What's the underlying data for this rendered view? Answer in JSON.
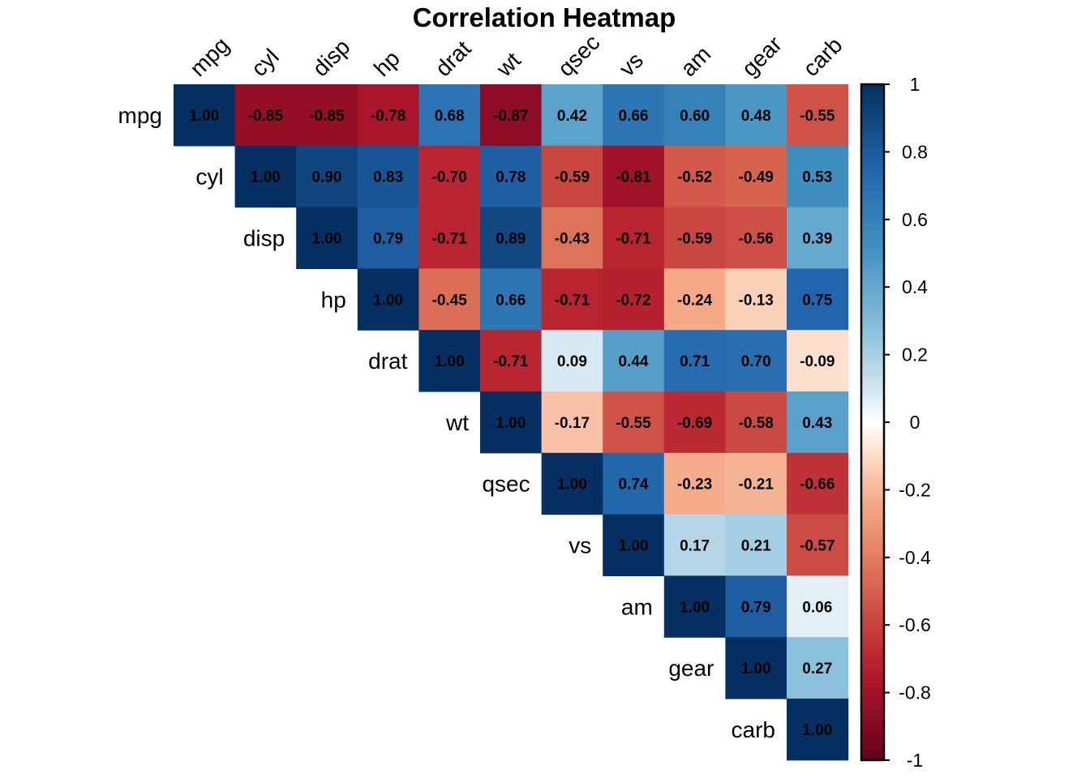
{
  "chart_data": {
    "type": "heatmap",
    "title": "Correlation Heatmap",
    "variables": [
      "mpg",
      "cyl",
      "disp",
      "hp",
      "drat",
      "wt",
      "qsec",
      "vs",
      "am",
      "gear",
      "carb"
    ],
    "triangle": "upper",
    "show_diagonal": true,
    "value_format": "2 decimals",
    "matrix": [
      [
        1.0,
        -0.85,
        -0.85,
        -0.78,
        0.68,
        -0.87,
        0.42,
        0.66,
        0.6,
        0.48,
        -0.55
      ],
      [
        null,
        1.0,
        0.9,
        0.83,
        -0.7,
        0.78,
        -0.59,
        -0.81,
        -0.52,
        -0.49,
        0.53
      ],
      [
        null,
        null,
        1.0,
        0.79,
        -0.71,
        0.89,
        -0.43,
        -0.71,
        -0.59,
        -0.56,
        0.39
      ],
      [
        null,
        null,
        null,
        1.0,
        -0.45,
        0.66,
        -0.71,
        -0.72,
        -0.24,
        -0.13,
        0.75
      ],
      [
        null,
        null,
        null,
        null,
        1.0,
        -0.71,
        0.09,
        0.44,
        0.71,
        0.7,
        -0.09
      ],
      [
        null,
        null,
        null,
        null,
        null,
        1.0,
        -0.17,
        -0.55,
        -0.69,
        -0.58,
        0.43
      ],
      [
        null,
        null,
        null,
        null,
        null,
        null,
        1.0,
        0.74,
        -0.23,
        -0.21,
        -0.66
      ],
      [
        null,
        null,
        null,
        null,
        null,
        null,
        null,
        1.0,
        0.17,
        0.21,
        -0.57
      ],
      [
        null,
        null,
        null,
        null,
        null,
        null,
        null,
        null,
        1.0,
        0.79,
        0.06
      ],
      [
        null,
        null,
        null,
        null,
        null,
        null,
        null,
        null,
        null,
        1.0,
        0.27
      ],
      [
        null,
        null,
        null,
        null,
        null,
        null,
        null,
        null,
        null,
        null,
        1.0
      ]
    ],
    "color_scale": {
      "name": "RdBu diverging",
      "range": [
        -1,
        1
      ],
      "stops": [
        {
          "value": -1.0,
          "color": "#67001F"
        },
        {
          "value": -0.75,
          "color": "#B2182B"
        },
        {
          "value": -0.5,
          "color": "#D6604D"
        },
        {
          "value": -0.25,
          "color": "#F4A582"
        },
        {
          "value": -0.1,
          "color": "#FDDBC7"
        },
        {
          "value": 0.0,
          "color": "#FFFFFF"
        },
        {
          "value": 0.1,
          "color": "#D1E5F0"
        },
        {
          "value": 0.25,
          "color": "#92C5DE"
        },
        {
          "value": 0.5,
          "color": "#4393C3"
        },
        {
          "value": 0.75,
          "color": "#2166AC"
        },
        {
          "value": 1.0,
          "color": "#053061"
        }
      ]
    },
    "legend": {
      "position": "right",
      "ticks": [
        1,
        0.8,
        0.6,
        0.4,
        0.2,
        0,
        -0.2,
        -0.4,
        -0.6,
        -0.8,
        -1
      ],
      "tick_labels": [
        "1",
        "0.8",
        "0.6",
        "0.4",
        "0.2",
        "0",
        "-0.2",
        "-0.4",
        "-0.6",
        "-0.8",
        "-1"
      ]
    }
  }
}
